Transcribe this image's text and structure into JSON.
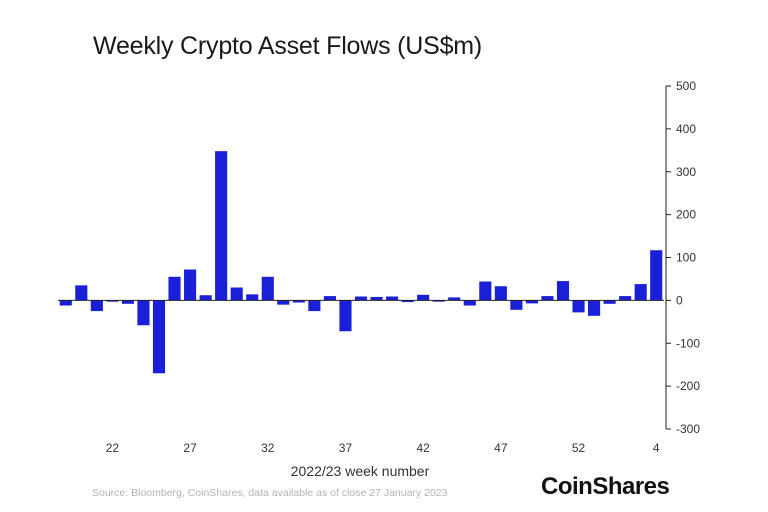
{
  "chart_data": {
    "type": "bar",
    "title": "Weekly Crypto Asset Flows (US$m)",
    "xlabel": "2022/23 week number",
    "ylabel": "",
    "ylim": [
      -300,
      500
    ],
    "y_ticks": [
      500,
      400,
      300,
      200,
      100,
      0,
      -100,
      -200,
      -300
    ],
    "y_axis_position": "right",
    "x_tick_labels": [
      {
        "label": "22",
        "index": 3
      },
      {
        "label": "27",
        "index": 8
      },
      {
        "label": "32",
        "index": 13
      },
      {
        "label": "37",
        "index": 18
      },
      {
        "label": "42",
        "index": 23
      },
      {
        "label": "47",
        "index": 28
      },
      {
        "label": "52",
        "index": 33
      },
      {
        "label": "4",
        "index": 38
      }
    ],
    "series": [
      {
        "color": "#1a1fd8",
        "values": [
          -12,
          35,
          -25,
          -3,
          -8,
          -58,
          -170,
          55,
          72,
          12,
          348,
          30,
          14,
          55,
          -10,
          -5,
          -25,
          10,
          -72,
          9,
          8,
          9,
          -4,
          13,
          -3,
          7,
          -12,
          44,
          33,
          -22,
          -7,
          10,
          45,
          -28,
          -36,
          -8,
          10,
          38,
          117
        ]
      }
    ]
  },
  "source_note": "Source: Bloomberg, CoinShares, data available as of close 27 January 2023",
  "brand": "CoinShares"
}
